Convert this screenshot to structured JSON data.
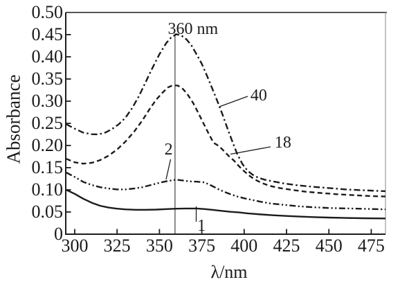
{
  "figure": {
    "background": "#ffffff",
    "ink_color": "#1b1b1b",
    "frame_right_color": "#9a9a9a"
  },
  "chart_data": {
    "type": "line",
    "title": "",
    "xlabel": "λ/nm",
    "ylabel": "Absorbance",
    "xlim": [
      294.7,
      483.4
    ],
    "ylim": [
      0,
      0.5
    ],
    "grid": false,
    "legend_position": "none",
    "x_ticks": [
      {
        "value": 300,
        "label": "300"
      },
      {
        "value": 325,
        "label": "325"
      },
      {
        "value": 350,
        "label": "350"
      },
      {
        "value": 375,
        "label": "375"
      },
      {
        "value": 400,
        "label": "400"
      },
      {
        "value": 425,
        "label": "425"
      },
      {
        "value": 450,
        "label": "450"
      },
      {
        "value": 475,
        "label": "475"
      }
    ],
    "y_ticks": [
      {
        "value": 0.5,
        "label": "0.50"
      },
      {
        "value": 0.45,
        "label": "0.45"
      },
      {
        "value": 0.4,
        "label": "0.40"
      },
      {
        "value": 0.35,
        "label": "0.35"
      },
      {
        "value": 0.3,
        "label": "0.30"
      },
      {
        "value": 0.25,
        "label": "0.25"
      },
      {
        "value": 0.2,
        "label": "0.20"
      },
      {
        "value": 0.15,
        "label": "0.15"
      },
      {
        "value": 0.1,
        "label": "0.10"
      },
      {
        "value": 0.05,
        "label": "0.05"
      },
      {
        "value": 0,
        "label": "0"
      }
    ],
    "vline": {
      "x": 359.2,
      "y1": 0,
      "y2": 0.453
    },
    "annotations": [
      {
        "id": "peak-wavelength-label",
        "text": "360 nm",
        "x": 369.8,
        "y": 0.463
      },
      {
        "id": "curve-label-40",
        "text": "40",
        "x": 408.6,
        "y": 0.313,
        "leader": [
          [
            402.1,
            0.311
          ],
          [
            385.4,
            0.2875
          ]
        ]
      },
      {
        "id": "curve-label-18",
        "text": "18",
        "x": 422.9,
        "y": 0.207,
        "leader": [
          [
            415.6,
            0.197
          ],
          [
            391.9,
            0.1805
          ]
        ]
      },
      {
        "id": "curve-label-2",
        "text": "2",
        "x": 355.4,
        "y": 0.19,
        "leader": [
          [
            356.6,
            0.169
          ],
          [
            353.9,
            0.1234
          ]
        ]
      },
      {
        "id": "curve-label-1",
        "text": "1",
        "x": 374.8,
        "y": 0.0195,
        "leader": [
          [
            371.7,
            0.0625
          ],
          [
            371.7,
            0.028
          ]
        ]
      }
    ],
    "series": [
      {
        "name": "40",
        "style": "dash-dot",
        "points": [
          [
            295,
            0.248
          ],
          [
            300,
            0.238
          ],
          [
            305,
            0.229
          ],
          [
            310,
            0.2255
          ],
          [
            314,
            0.225
          ],
          [
            318,
            0.229
          ],
          [
            322,
            0.237
          ],
          [
            326,
            0.248
          ],
          [
            330,
            0.263
          ],
          [
            334,
            0.285
          ],
          [
            338,
            0.312
          ],
          [
            342,
            0.344
          ],
          [
            346,
            0.376
          ],
          [
            350,
            0.406
          ],
          [
            354,
            0.431
          ],
          [
            357,
            0.444
          ],
          [
            360,
            0.451
          ],
          [
            363,
            0.448
          ],
          [
            366,
            0.439
          ],
          [
            369,
            0.425
          ],
          [
            372,
            0.405
          ],
          [
            375,
            0.384
          ],
          [
            378,
            0.358
          ],
          [
            381,
            0.33
          ],
          [
            384,
            0.302
          ],
          [
            387,
            0.272
          ],
          [
            390,
            0.24
          ],
          [
            393,
            0.209
          ],
          [
            396,
            0.18
          ],
          [
            399,
            0.158
          ],
          [
            402,
            0.143
          ],
          [
            405,
            0.134
          ],
          [
            408,
            0.128
          ],
          [
            412,
            0.123
          ],
          [
            417,
            0.119
          ],
          [
            424,
            0.114
          ],
          [
            432,
            0.11
          ],
          [
            440,
            0.107
          ],
          [
            450,
            0.104
          ],
          [
            460,
            0.101
          ],
          [
            470,
            0.099
          ],
          [
            477,
            0.098
          ],
          [
            483.4,
            0.097
          ]
        ]
      },
      {
        "name": "18",
        "style": "dashed",
        "points": [
          [
            295,
            0.17
          ],
          [
            300,
            0.162
          ],
          [
            305,
            0.159
          ],
          [
            310,
            0.161
          ],
          [
            315,
            0.167
          ],
          [
            320,
            0.177
          ],
          [
            325,
            0.191
          ],
          [
            330,
            0.209
          ],
          [
            335,
            0.231
          ],
          [
            340,
            0.257
          ],
          [
            344,
            0.281
          ],
          [
            348,
            0.303
          ],
          [
            352,
            0.32
          ],
          [
            355,
            0.331
          ],
          [
            358,
            0.336
          ],
          [
            361,
            0.335
          ],
          [
            364,
            0.327
          ],
          [
            367,
            0.313
          ],
          [
            370,
            0.295
          ],
          [
            373,
            0.273
          ],
          [
            376,
            0.25
          ],
          [
            379,
            0.227
          ],
          [
            382,
            0.206
          ],
          [
            385,
            0.199
          ],
          [
            388,
            0.188
          ],
          [
            391,
            0.176
          ],
          [
            394,
            0.166
          ],
          [
            397,
            0.153
          ],
          [
            400,
            0.142
          ],
          [
            403,
            0.132
          ],
          [
            406,
            0.124
          ],
          [
            410,
            0.116
          ],
          [
            415,
            0.109
          ],
          [
            421,
            0.104
          ],
          [
            428,
            0.1
          ],
          [
            436,
            0.096
          ],
          [
            445,
            0.093
          ],
          [
            455,
            0.09
          ],
          [
            465,
            0.088
          ],
          [
            475,
            0.086
          ],
          [
            483.4,
            0.085
          ]
        ]
      },
      {
        "name": "2",
        "style": "dash-dot-dot",
        "points": [
          [
            295,
            0.139
          ],
          [
            300,
            0.129
          ],
          [
            305,
            0.118
          ],
          [
            310,
            0.111
          ],
          [
            315,
            0.106
          ],
          [
            320,
            0.103
          ],
          [
            325,
            0.101
          ],
          [
            330,
            0.101
          ],
          [
            335,
            0.103
          ],
          [
            340,
            0.106
          ],
          [
            345,
            0.111
          ],
          [
            350,
            0.116
          ],
          [
            355,
            0.12
          ],
          [
            360,
            0.123
          ],
          [
            364,
            0.121
          ],
          [
            368,
            0.119
          ],
          [
            372,
            0.1185
          ],
          [
            376,
            0.117
          ],
          [
            379,
            0.113
          ],
          [
            382,
            0.107
          ],
          [
            385,
            0.101
          ],
          [
            388,
            0.096
          ],
          [
            392,
            0.09
          ],
          [
            396,
            0.085
          ],
          [
            400,
            0.081
          ],
          [
            405,
            0.077
          ],
          [
            410,
            0.073
          ],
          [
            416,
            0.069
          ],
          [
            424,
            0.066
          ],
          [
            432,
            0.063
          ],
          [
            440,
            0.061
          ],
          [
            450,
            0.059
          ],
          [
            462,
            0.058
          ],
          [
            473,
            0.057
          ],
          [
            483.4,
            0.056
          ]
        ]
      },
      {
        "name": "1",
        "style": "solid",
        "points": [
          [
            295,
            0.1
          ],
          [
            300,
            0.091
          ],
          [
            305,
            0.08
          ],
          [
            310,
            0.071
          ],
          [
            315,
            0.064
          ],
          [
            320,
            0.06
          ],
          [
            325,
            0.0575
          ],
          [
            330,
            0.056
          ],
          [
            336,
            0.055
          ],
          [
            342,
            0.055
          ],
          [
            348,
            0.0555
          ],
          [
            354,
            0.0565
          ],
          [
            360,
            0.0575
          ],
          [
            366,
            0.058
          ],
          [
            372,
            0.058
          ],
          [
            377,
            0.0565
          ],
          [
            382,
            0.0545
          ],
          [
            387,
            0.0525
          ],
          [
            392,
            0.0505
          ],
          [
            397,
            0.049
          ],
          [
            402,
            0.047
          ],
          [
            410,
            0.0445
          ],
          [
            418,
            0.0425
          ],
          [
            426,
            0.041
          ],
          [
            434,
            0.0395
          ],
          [
            442,
            0.0385
          ],
          [
            450,
            0.0375
          ],
          [
            460,
            0.0365
          ],
          [
            470,
            0.036
          ],
          [
            483.4,
            0.0355
          ]
        ]
      }
    ]
  }
}
